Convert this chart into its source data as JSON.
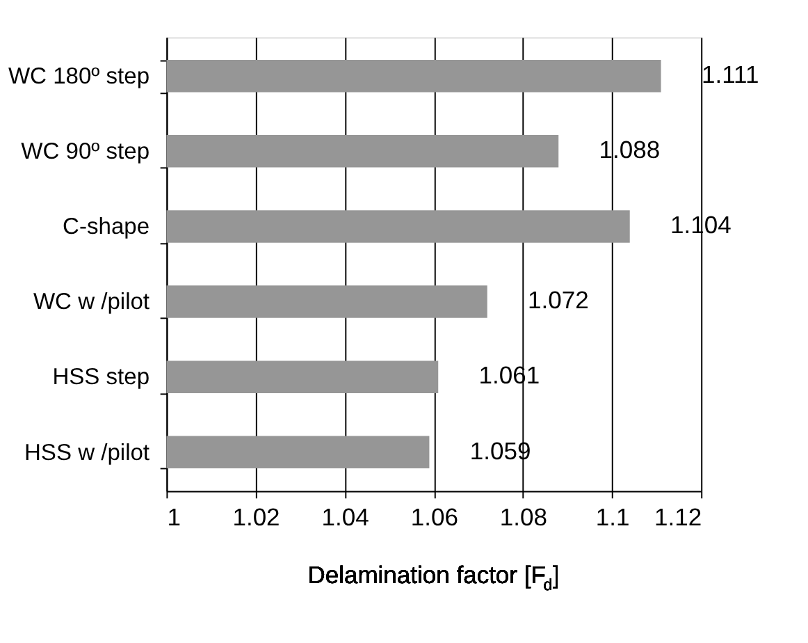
{
  "chart_data": {
    "type": "bar",
    "orientation": "horizontal",
    "xlabel": "Delamination factor [F$_{d}$]",
    "categories": [
      "WC 180º step",
      "WC 90º step",
      "C-shape",
      "WC w /pilot",
      "HSS step",
      "HSS w /pilot"
    ],
    "values": [
      1.111,
      1.088,
      1.104,
      1.072,
      1.061,
      1.059
    ],
    "color": "#969696",
    "data_labels": true,
    "xlim": [
      1,
      1.12
    ],
    "xticks": [
      1,
      1.02,
      1.04,
      1.06,
      1.08,
      1.1,
      1.12
    ],
    "grid": "x"
  }
}
